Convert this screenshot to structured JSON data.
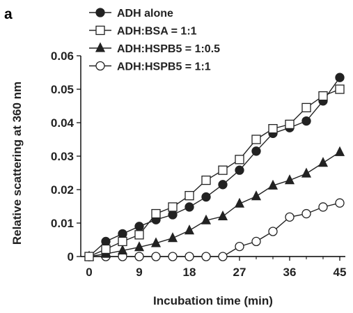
{
  "panel_label": "a",
  "chart_data": {
    "type": "line",
    "xlabel": "Incubation time (min)",
    "ylabel": "Relative scattering at 360 nm",
    "xlim": [
      -1.5,
      46
    ],
    "ylim": [
      0,
      0.06
    ],
    "x_ticks": [
      "0",
      "9",
      "18",
      "27",
      "36",
      "45"
    ],
    "y_ticks": [
      "0",
      "0.01",
      "0.02",
      "0.03",
      "0.04",
      "0.05",
      "0.06"
    ],
    "legend_position": "top-left",
    "grid": false,
    "x": [
      0,
      3,
      6,
      9,
      12,
      15,
      18,
      21,
      24,
      27,
      30,
      33,
      36,
      39,
      42,
      45
    ],
    "series": [
      {
        "name": "ADH alone",
        "marker": "filled-circle",
        "color": "#222222",
        "values": [
          0,
          0.0045,
          0.0068,
          0.009,
          0.011,
          0.0125,
          0.0148,
          0.0178,
          0.0215,
          0.0258,
          0.0315,
          0.0368,
          0.0385,
          0.0405,
          0.0465,
          0.0535
        ]
      },
      {
        "name": "ADH:BSA = 1:1",
        "marker": "open-square",
        "color": "#222222",
        "values": [
          0,
          0.0022,
          0.0045,
          0.0065,
          0.0128,
          0.0148,
          0.0182,
          0.0228,
          0.0258,
          0.029,
          0.035,
          0.0382,
          0.0395,
          0.0445,
          0.048,
          0.05
        ]
      },
      {
        "name": "ADH:HSPB5 = 1:0.5",
        "marker": "filled-triangle",
        "color": "#222222",
        "values": [
          0,
          0.0008,
          0.0018,
          0.0028,
          0.004,
          0.0055,
          0.0078,
          0.0108,
          0.012,
          0.0158,
          0.018,
          0.0212,
          0.0228,
          0.0248,
          0.028,
          0.0312
        ]
      },
      {
        "name": "ADH:HSPB5 = 1:1",
        "marker": "open-circle",
        "color": "#222222",
        "values": [
          0,
          0,
          0,
          0,
          0,
          0,
          0,
          0,
          0,
          0.003,
          0.0045,
          0.0075,
          0.0118,
          0.0128,
          0.0148,
          0.016
        ]
      }
    ]
  }
}
